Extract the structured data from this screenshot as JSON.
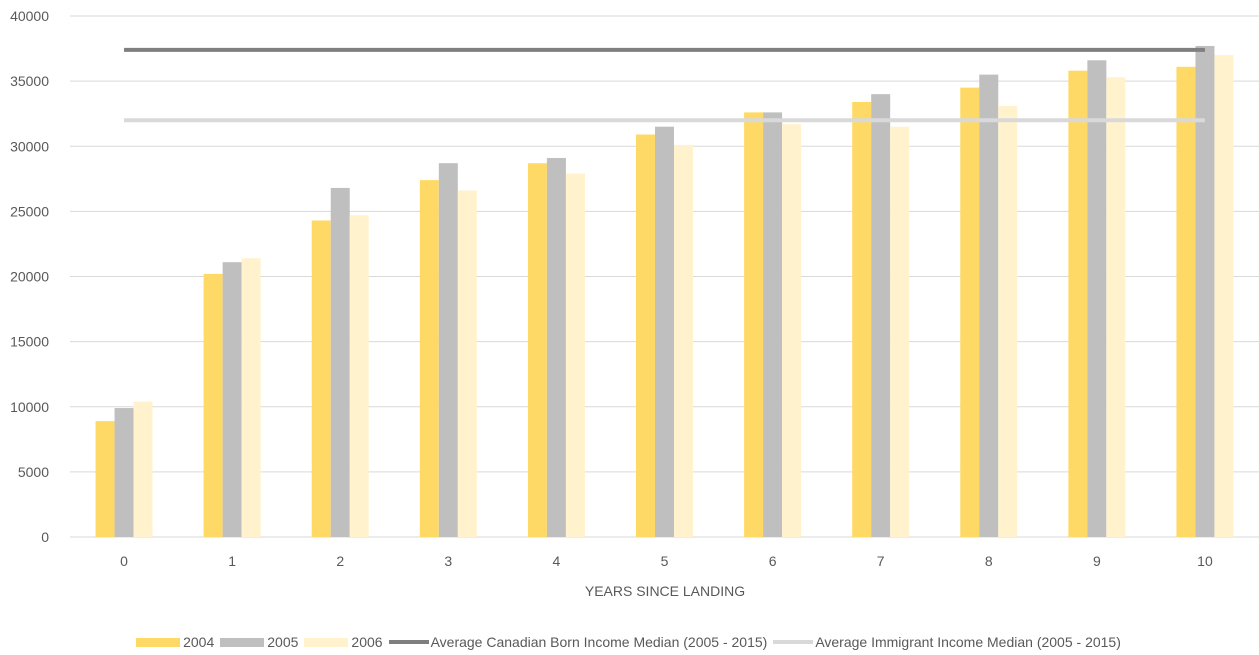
{
  "chart_data": {
    "type": "bar",
    "xlabel": "YEARS SINCE LANDING",
    "ylabel": "",
    "ylim": [
      0,
      40000
    ],
    "y_ticks": [
      0,
      5000,
      10000,
      15000,
      20000,
      25000,
      30000,
      35000,
      40000
    ],
    "grid": true,
    "legend_position": "bottom",
    "categories": [
      "0",
      "1",
      "2",
      "3",
      "4",
      "5",
      "6",
      "7",
      "8",
      "9",
      "10"
    ],
    "series": [
      {
        "name": "2004",
        "color": "#FFD966",
        "values": [
          8900,
          20200,
          24300,
          27400,
          28700,
          30900,
          32600,
          33400,
          34500,
          35800,
          36100
        ]
      },
      {
        "name": "2005",
        "color": "#BFBFBF",
        "values": [
          9900,
          21100,
          26800,
          28700,
          29100,
          31500,
          32600,
          34000,
          35500,
          36600,
          37700
        ]
      },
      {
        "name": "2006",
        "color": "#FFF2CC",
        "values": [
          10400,
          21400,
          24700,
          26600,
          27900,
          30100,
          31700,
          31500,
          33100,
          35300,
          37000
        ]
      }
    ],
    "reference_lines": [
      {
        "name": "Average Canadian Born Income Median (2005 - 2015)",
        "color": "#7F7F7F",
        "value": 37400
      },
      {
        "name": "Average Immigrant Income Median (2005 - 2015)",
        "color": "#D9D9D9",
        "value": 32000
      }
    ]
  }
}
